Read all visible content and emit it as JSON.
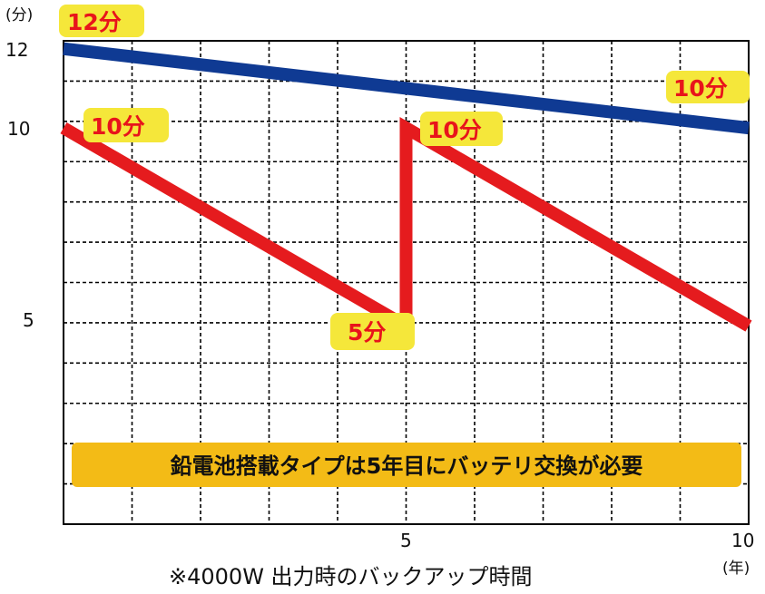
{
  "chart_data": {
    "type": "line",
    "x_unit": "(年)",
    "y_unit": "(分)",
    "xlim": [
      0,
      10
    ],
    "ylim": [
      0,
      12.2
    ],
    "x_ticks": [
      "5",
      "10"
    ],
    "y_ticks": [
      "12",
      "10",
      "5"
    ],
    "grid": true,
    "series": [
      {
        "color": "#0f3a93",
        "x": [
          0,
          10
        ],
        "y": [
          12,
          10
        ]
      },
      {
        "color": "#e51b1e",
        "x": [
          0,
          5,
          5,
          10
        ],
        "y": [
          10,
          5,
          10,
          5
        ]
      }
    ],
    "annotations": [
      "12分",
      "10分",
      "10分",
      "10分",
      "5分"
    ],
    "note": "鉛電池搭載タイプは5年目にバッテリ交換が必要",
    "footnote": "※4000W 出力時のバックアップ時間"
  },
  "colors": {
    "label_bg": "#f5e73a",
    "label_text": "#e8141b",
    "note_bg": "#f3bb16"
  }
}
